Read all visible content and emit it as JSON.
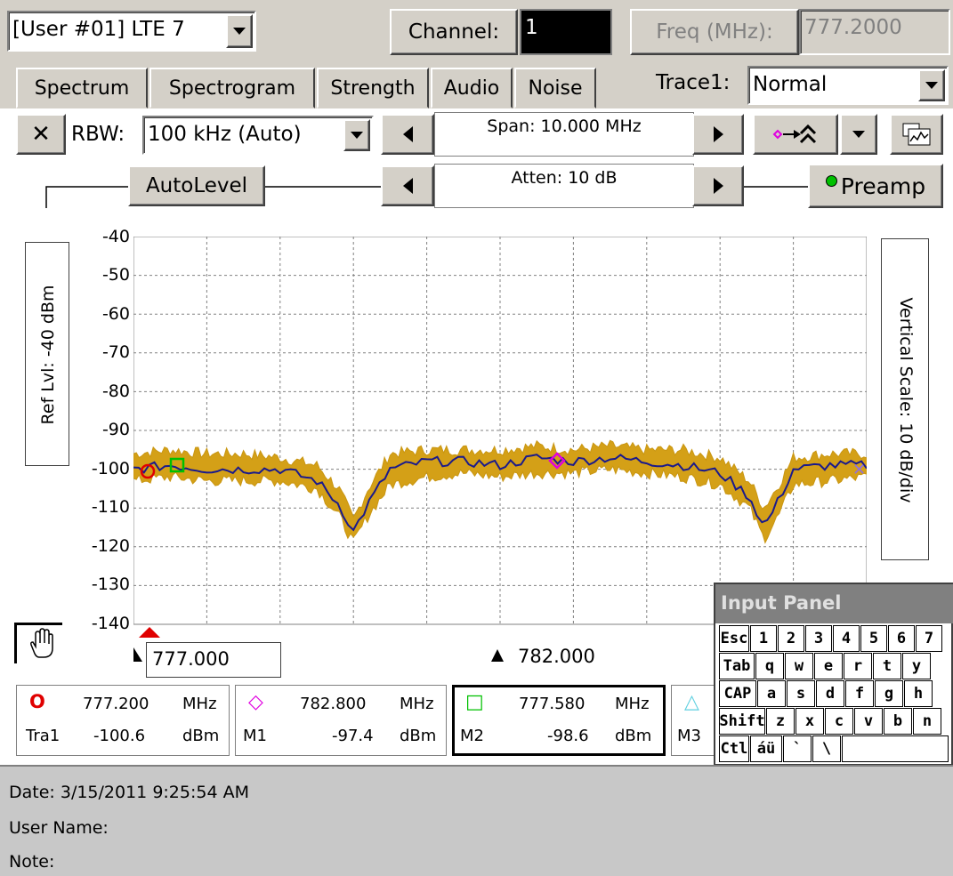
{
  "header": {
    "user_select": "[User  #01] LTE 7",
    "channel_label": "Channel:",
    "channel_value": "1",
    "freq_label": "Freq (MHz):",
    "freq_value": "777.2000"
  },
  "tabs": [
    "Spectrum",
    "Spectrogram",
    "Strength",
    "Audio",
    "Noise"
  ],
  "trace": {
    "label": "Trace1:",
    "value": "Normal"
  },
  "toolbar": {
    "close_glyph": "✕",
    "rbw_label": "RBW:",
    "rbw_value": "100 kHz (Auto)",
    "span": "Span: 10.000 MHz",
    "atten": "Atten: 10 dB",
    "autolevel": "AutoLevel",
    "preamp": "Preamp"
  },
  "side_labels": {
    "ref_level": "Ref Lvl: -40 dBm",
    "vertical_scale": "Vertical Scale: 10 dB/div"
  },
  "chart_data": {
    "type": "line",
    "y_ticks": [
      "-40",
      "-50",
      "-60",
      "-70",
      "-80",
      "-90",
      "-100",
      "-110",
      "-120",
      "-130",
      "-140"
    ],
    "ylim": [
      -140,
      -40
    ],
    "xlim": [
      777.0,
      787.0
    ],
    "grid": true,
    "reference_line": -40,
    "series": [
      {
        "color": "#d4a017",
        "x": [
          777.0,
          777.5,
          778.0,
          778.5,
          779.0,
          779.5,
          779.8,
          780.0,
          780.2,
          780.5,
          781.0,
          781.5,
          782.0,
          782.5,
          783.0,
          783.5,
          784.0,
          784.5,
          785.0,
          785.4,
          785.6,
          785.8,
          786.0,
          786.5,
          787.0
        ],
        "min": [
          -103,
          -102,
          -103,
          -103,
          -103,
          -105,
          -112,
          -119,
          -112,
          -104,
          -102,
          -101,
          -102,
          -101,
          -101,
          -100,
          -101,
          -102,
          -104,
          -110,
          -118,
          -112,
          -104,
          -103,
          -102
        ],
        "max": [
          -96,
          -95,
          -96,
          -96,
          -97,
          -99,
          -105,
          -113,
          -105,
          -96,
          -95,
          -95,
          -95,
          -94,
          -95,
          -94,
          -95,
          -95,
          -97,
          -103,
          -110,
          -104,
          -97,
          -96,
          -96
        ]
      },
      {
        "color": "#1a1a8c",
        "x": [
          777.0,
          777.5,
          778.0,
          778.5,
          779.0,
          779.5,
          779.8,
          780.0,
          780.2,
          780.5,
          781.0,
          781.5,
          782.0,
          782.5,
          783.0,
          783.5,
          784.0,
          784.5,
          785.0,
          785.4,
          785.6,
          785.8,
          786.0,
          786.5,
          787.0
        ],
        "y": [
          -100,
          -99,
          -100,
          -100,
          -100,
          -103,
          -109,
          -116,
          -109,
          -100,
          -98,
          -98,
          -99,
          -97,
          -98,
          -97,
          -98,
          -99,
          -101,
          -107,
          -115,
          -108,
          -100,
          -99,
          -99
        ]
      }
    ]
  },
  "freq_axis": {
    "start": "777.000",
    "center": "782.000"
  },
  "markers": [
    {
      "symbol": "O",
      "freq": "777.200",
      "freq_unit": "MHz",
      "name": "Tra1",
      "level": "-100.6",
      "level_unit": "dBm",
      "color": "#e00000"
    },
    {
      "symbol": "◇",
      "freq": "782.800",
      "freq_unit": "MHz",
      "name": "M1",
      "level": "-97.4",
      "level_unit": "dBm",
      "color": "#e000e0"
    },
    {
      "symbol": "□",
      "freq": "777.580",
      "freq_unit": "MHz",
      "name": "M2",
      "level": "-98.6",
      "level_unit": "dBm",
      "color": "#00c000"
    },
    {
      "symbol": "△",
      "name": "M3",
      "color": "#60d0e0"
    }
  ],
  "input_panel": {
    "title": "Input Panel",
    "rows": [
      [
        "Esc",
        "1",
        "2",
        "3",
        "4",
        "5",
        "6",
        "7"
      ],
      [
        "Tab",
        "q",
        "w",
        "e",
        "r",
        "t",
        "y"
      ],
      [
        "CAP",
        "a",
        "s",
        "d",
        "f",
        "g",
        "h"
      ],
      [
        "Shift",
        "z",
        "x",
        "c",
        "v",
        "b",
        "n"
      ],
      [
        "Ctl",
        "áü",
        "`",
        "\\",
        ""
      ]
    ]
  },
  "footer": {
    "date": "Date: 3/15/2011 9:25:54 AM",
    "user_name": "User Name:",
    "note": "Note:"
  }
}
